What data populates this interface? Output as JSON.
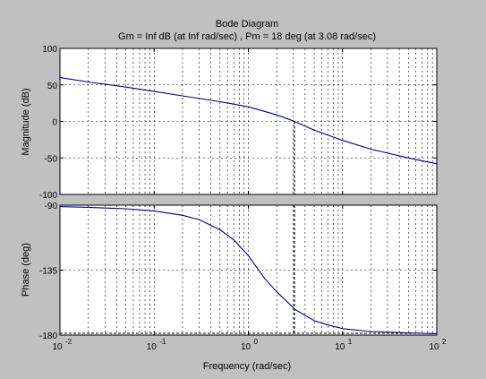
{
  "figure": {
    "background": "#c0c0c0",
    "axes_background": "#ffffff",
    "line_color": "#00008b",
    "grid_color": "#000000"
  },
  "chart_data": {
    "type": "line",
    "title": "Bode Diagram",
    "subtitle": "Gm = Inf dB (at Inf rad/sec) ,  Pm = 18 deg (at 3.08 rad/sec)",
    "xlabel": "Frequency  (rad/sec)",
    "xscale": "log",
    "xlim": [
      0.01,
      100
    ],
    "x_ticks": [
      0.01,
      0.1,
      1,
      10,
      100
    ],
    "x_tick_labels": [
      {
        "base": "10",
        "exp": "-2"
      },
      {
        "base": "10",
        "exp": "-1"
      },
      {
        "base": "10",
        "exp": "0"
      },
      {
        "base": "10",
        "exp": "1"
      },
      {
        "base": "10",
        "exp": "2"
      }
    ],
    "grid": true,
    "crossover_frequency": 3.08,
    "magnitude": {
      "ylabel": "Magnitude (dB)",
      "ylim": [
        -100,
        100
      ],
      "y_ticks": [
        -100,
        -50,
        0,
        50,
        100
      ],
      "y_tick_labels": [
        "-100",
        "-50",
        "0",
        "50",
        "100"
      ],
      "x": [
        0.01,
        0.02,
        0.05,
        0.1,
        0.2,
        0.5,
        1,
        2,
        3.08,
        5,
        10,
        20,
        50,
        100
      ],
      "y": [
        60,
        54,
        47,
        41,
        35,
        27,
        20,
        9,
        0,
        -12,
        -26,
        -38,
        -50,
        -58
      ]
    },
    "phase": {
      "ylabel": "Phase (deg)",
      "ylim": [
        -180,
        -90
      ],
      "y_ticks": [
        -180,
        -135,
        -90
      ],
      "y_tick_labels": [
        "-180",
        "-135",
        "-90"
      ],
      "x": [
        0.01,
        0.02,
        0.05,
        0.1,
        0.2,
        0.3,
        0.5,
        0.7,
        1,
        1.5,
        2,
        3,
        3.08,
        5,
        7,
        10,
        20,
        50,
        100
      ],
      "y": [
        -91,
        -91.5,
        -92.5,
        -94,
        -97,
        -100,
        -107,
        -114,
        -125,
        -141,
        -150,
        -161,
        -162,
        -170,
        -173,
        -175.5,
        -177.5,
        -178.5,
        -179
      ]
    }
  }
}
